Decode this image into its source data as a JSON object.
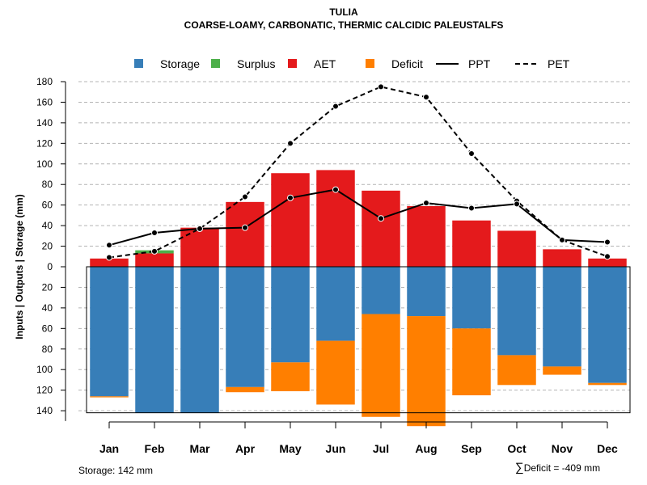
{
  "chart_data": {
    "type": "bar",
    "title": "TULIA",
    "subtitle": "COARSE-LOAMY, CARBONATIC, THERMIC CALCIDIC PALEUSTALFS",
    "ylabel": "Inputs | Outputs | Storage    (mm)",
    "ylim": [
      -155,
      180
    ],
    "yticks_upper": [
      0,
      20,
      40,
      60,
      80,
      100,
      120,
      140,
      160,
      180
    ],
    "yticks_lower": [
      20,
      40,
      60,
      80,
      100,
      120,
      140
    ],
    "categories": [
      "Jan",
      "Feb",
      "Mar",
      "Apr",
      "May",
      "Jun",
      "Jul",
      "Aug",
      "Sep",
      "Oct",
      "Nov",
      "Dec"
    ],
    "legend": [
      {
        "label": "Storage",
        "color": "#377eb8",
        "kind": "box"
      },
      {
        "label": "Surplus",
        "color": "#4daf4a",
        "kind": "box"
      },
      {
        "label": "AET",
        "color": "#e41a1c",
        "kind": "box"
      },
      {
        "label": "Deficit",
        "color": "#ff7f00",
        "kind": "box"
      },
      {
        "label": "PPT",
        "color": "#000000",
        "kind": "solid"
      },
      {
        "label": "PET",
        "color": "#000000",
        "kind": "dashed"
      }
    ],
    "series": [
      {
        "name": "AET",
        "color": "#e41a1c",
        "values": [
          8,
          13,
          38,
          63,
          91,
          94,
          74,
          59,
          45,
          35,
          17,
          8
        ]
      },
      {
        "name": "Surplus",
        "color": "#4daf4a",
        "values": [
          0,
          3,
          0,
          0,
          0,
          0,
          0,
          0,
          0,
          0,
          0,
          0
        ]
      },
      {
        "name": "Storage",
        "color": "#377eb8",
        "values": [
          126,
          142,
          142,
          117,
          93,
          72,
          46,
          48,
          60,
          86,
          97,
          113
        ]
      },
      {
        "name": "Deficit",
        "color": "#ff7f00",
        "values": [
          1,
          0,
          0,
          5,
          28,
          62,
          100,
          107,
          65,
          29,
          8,
          2
        ]
      },
      {
        "name": "PPT",
        "color": "#000000",
        "style": "solid",
        "values": [
          21,
          33,
          37,
          38,
          67,
          75,
          47,
          62,
          57,
          61,
          26,
          24
        ]
      },
      {
        "name": "PET",
        "color": "#000000",
        "style": "dashed",
        "values": [
          9,
          15,
          37,
          68,
          120,
          156,
          175,
          165,
          110,
          64,
          26,
          10
        ]
      }
    ],
    "storage_capacity": 142
  },
  "footer": {
    "storage_text": "Storage: 142 mm",
    "deficit_symbol": "∑",
    "deficit_text": "Deficit = -409 mm"
  }
}
